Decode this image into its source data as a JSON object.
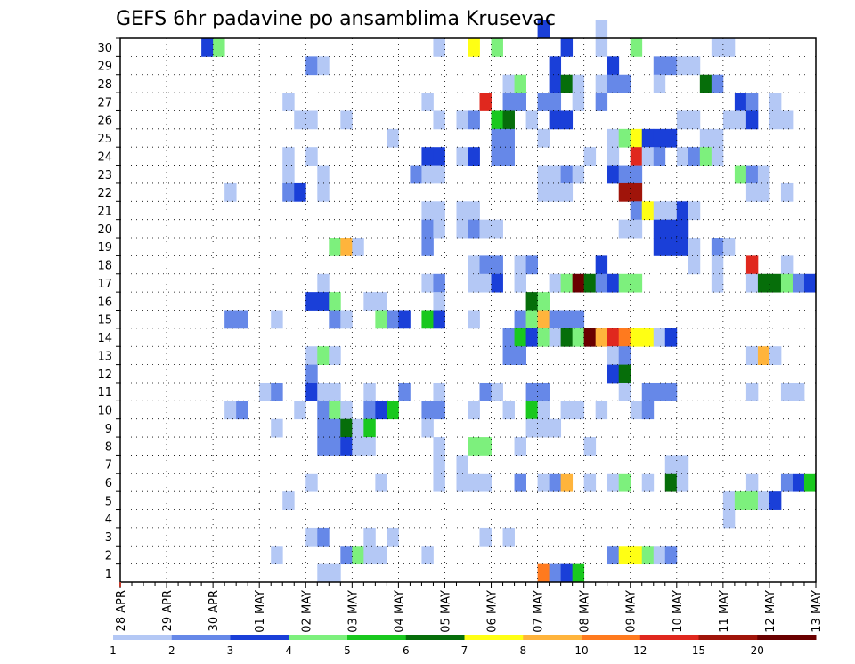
{
  "chart_data": {
    "type": "heatmap",
    "title": "GEFS 6hr padavine po ansamblima Krusevac",
    "xlabel": "",
    "ylabel": "",
    "x_tick_labels": [
      "28 APR",
      "29 APR",
      "30 APR",
      "01 MAY",
      "02 MAY",
      "03 MAY",
      "04 MAY",
      "05 MAY",
      "06 MAY",
      "07 MAY",
      "08 MAY",
      "09 MAY",
      "10 MAY",
      "11 MAY",
      "12 MAY",
      "13 MAY"
    ],
    "y_tick_labels": [
      "1",
      "2",
      "3",
      "4",
      "5",
      "6",
      "7",
      "8",
      "9",
      "10",
      "11",
      "12",
      "13",
      "14",
      "15",
      "16",
      "17",
      "18",
      "19",
      "20",
      "21",
      "22",
      "23",
      "24",
      "25",
      "26",
      "27",
      "28",
      "29",
      "30"
    ],
    "y_range": [
      0,
      30
    ],
    "x_steps_per_day": 4,
    "total_steps": 60,
    "grid": true,
    "colorbar": {
      "labels": [
        "1",
        "2",
        "3",
        "4",
        "5",
        "6",
        "7",
        "8",
        "10",
        "12",
        "15",
        "20"
      ],
      "colors": [
        "#b4c8f5",
        "#6688e8",
        "#1a3fd8",
        "#7df07d",
        "#19c81e",
        "#066e0a",
        "#ffff14",
        "#ffb43c",
        "#ff7a1e",
        "#e0281e",
        "#a0140a",
        "#6a0000"
      ]
    },
    "cells": [
      [
        7,
        29,
        2
      ],
      [
        8,
        29,
        3
      ],
      [
        27,
        29,
        0
      ],
      [
        30,
        29,
        6
      ],
      [
        32,
        29,
        3
      ],
      [
        38,
        29,
        2
      ],
      [
        41,
        29,
        0
      ],
      [
        44,
        29,
        3
      ],
      [
        51,
        29,
        0
      ],
      [
        52,
        29,
        0
      ],
      [
        16,
        28,
        1
      ],
      [
        17,
        28,
        0
      ],
      [
        37,
        28,
        2
      ],
      [
        42,
        28,
        2
      ],
      [
        46,
        28,
        1
      ],
      [
        47,
        28,
        1
      ],
      [
        48,
        28,
        0
      ],
      [
        49,
        28,
        0
      ],
      [
        33,
        27,
        0
      ],
      [
        34,
        27,
        3
      ],
      [
        37,
        27,
        2
      ],
      [
        38,
        27,
        5
      ],
      [
        39,
        27,
        0
      ],
      [
        41,
        27,
        0
      ],
      [
        42,
        27,
        1
      ],
      [
        43,
        27,
        1
      ],
      [
        46,
        27,
        0
      ],
      [
        50,
        27,
        5
      ],
      [
        51,
        27,
        1
      ],
      [
        14,
        26,
        0
      ],
      [
        26,
        26,
        0
      ],
      [
        31,
        26,
        9
      ],
      [
        33,
        26,
        1
      ],
      [
        34,
        26,
        1
      ],
      [
        36,
        26,
        1
      ],
      [
        37,
        26,
        1
      ],
      [
        39,
        26,
        0
      ],
      [
        41,
        26,
        1
      ],
      [
        53,
        26,
        2
      ],
      [
        54,
        26,
        1
      ],
      [
        56,
        26,
        0
      ],
      [
        15,
        25,
        0
      ],
      [
        16,
        25,
        0
      ],
      [
        19,
        25,
        0
      ],
      [
        27,
        25,
        0
      ],
      [
        29,
        25,
        0
      ],
      [
        30,
        25,
        1
      ],
      [
        32,
        25,
        4
      ],
      [
        33,
        25,
        5
      ],
      [
        35,
        25,
        0
      ],
      [
        37,
        25,
        2
      ],
      [
        38,
        25,
        2
      ],
      [
        48,
        25,
        0
      ],
      [
        49,
        25,
        0
      ],
      [
        52,
        25,
        0
      ],
      [
        53,
        25,
        0
      ],
      [
        54,
        25,
        2
      ],
      [
        56,
        25,
        0
      ],
      [
        57,
        25,
        0
      ],
      [
        23,
        24,
        0
      ],
      [
        32,
        24,
        1
      ],
      [
        33,
        24,
        1
      ],
      [
        36,
        24,
        0
      ],
      [
        42,
        24,
        0
      ],
      [
        43,
        24,
        3
      ],
      [
        44,
        24,
        6
      ],
      [
        45,
        24,
        2
      ],
      [
        46,
        24,
        2
      ],
      [
        47,
        24,
        2
      ],
      [
        50,
        24,
        0
      ],
      [
        51,
        24,
        0
      ],
      [
        14,
        23,
        0
      ],
      [
        16,
        23,
        0
      ],
      [
        26,
        23,
        2
      ],
      [
        27,
        23,
        2
      ],
      [
        29,
        23,
        0
      ],
      [
        30,
        23,
        2
      ],
      [
        32,
        23,
        1
      ],
      [
        33,
        23,
        1
      ],
      [
        40,
        23,
        0
      ],
      [
        42,
        23,
        0
      ],
      [
        44,
        23,
        9
      ],
      [
        45,
        23,
        0
      ],
      [
        46,
        23,
        1
      ],
      [
        48,
        23,
        0
      ],
      [
        49,
        23,
        1
      ],
      [
        50,
        23,
        3
      ],
      [
        51,
        23,
        0
      ],
      [
        14,
        22,
        0
      ],
      [
        17,
        22,
        0
      ],
      [
        25,
        22,
        1
      ],
      [
        26,
        22,
        0
      ],
      [
        27,
        22,
        0
      ],
      [
        36,
        22,
        0
      ],
      [
        37,
        22,
        0
      ],
      [
        38,
        22,
        1
      ],
      [
        39,
        22,
        0
      ],
      [
        42,
        22,
        2
      ],
      [
        43,
        22,
        1
      ],
      [
        44,
        22,
        1
      ],
      [
        53,
        22,
        3
      ],
      [
        54,
        22,
        1
      ],
      [
        55,
        22,
        0
      ],
      [
        9,
        21,
        0
      ],
      [
        14,
        21,
        1
      ],
      [
        15,
        21,
        2
      ],
      [
        17,
        21,
        0
      ],
      [
        36,
        21,
        0
      ],
      [
        37,
        21,
        0
      ],
      [
        38,
        21,
        0
      ],
      [
        43,
        21,
        10
      ],
      [
        44,
        21,
        10
      ],
      [
        54,
        21,
        0
      ],
      [
        55,
        21,
        0
      ],
      [
        57,
        21,
        0
      ],
      [
        26,
        20,
        0
      ],
      [
        27,
        20,
        0
      ],
      [
        29,
        20,
        0
      ],
      [
        30,
        20,
        0
      ],
      [
        44,
        20,
        1
      ],
      [
        45,
        20,
        6
      ],
      [
        46,
        20,
        0
      ],
      [
        47,
        20,
        0
      ],
      [
        48,
        20,
        2
      ],
      [
        49,
        20,
        0
      ],
      [
        26,
        19,
        1
      ],
      [
        27,
        19,
        0
      ],
      [
        29,
        19,
        0
      ],
      [
        30,
        19,
        1
      ],
      [
        31,
        19,
        0
      ],
      [
        32,
        19,
        0
      ],
      [
        43,
        19,
        0
      ],
      [
        44,
        19,
        0
      ],
      [
        46,
        19,
        2
      ],
      [
        47,
        19,
        2
      ],
      [
        48,
        19,
        2
      ],
      [
        18,
        18,
        3
      ],
      [
        19,
        18,
        7
      ],
      [
        20,
        18,
        0
      ],
      [
        26,
        18,
        1
      ],
      [
        46,
        18,
        2
      ],
      [
        47,
        18,
        2
      ],
      [
        48,
        18,
        2
      ],
      [
        49,
        18,
        0
      ],
      [
        51,
        18,
        1
      ],
      [
        52,
        18,
        0
      ],
      [
        30,
        17,
        0
      ],
      [
        31,
        17,
        1
      ],
      [
        32,
        17,
        1
      ],
      [
        34,
        17,
        0
      ],
      [
        35,
        17,
        1
      ],
      [
        41,
        17,
        2
      ],
      [
        49,
        17,
        0
      ],
      [
        51,
        17,
        0
      ],
      [
        54,
        17,
        9
      ],
      [
        57,
        17,
        0
      ],
      [
        17,
        16,
        0
      ],
      [
        26,
        16,
        0
      ],
      [
        27,
        16,
        1
      ],
      [
        30,
        16,
        0
      ],
      [
        31,
        16,
        0
      ],
      [
        32,
        16,
        2
      ],
      [
        34,
        16,
        0
      ],
      [
        37,
        16,
        0
      ],
      [
        38,
        16,
        3
      ],
      [
        39,
        16,
        11
      ],
      [
        40,
        16,
        5
      ],
      [
        41,
        16,
        1
      ],
      [
        42,
        16,
        2
      ],
      [
        43,
        16,
        3
      ],
      [
        44,
        16,
        3
      ],
      [
        51,
        16,
        0
      ],
      [
        54,
        16,
        0
      ],
      [
        55,
        16,
        5
      ],
      [
        56,
        16,
        5
      ],
      [
        57,
        16,
        3
      ],
      [
        58,
        16,
        1
      ],
      [
        59,
        16,
        2
      ],
      [
        16,
        15,
        2
      ],
      [
        17,
        15,
        2
      ],
      [
        18,
        15,
        3
      ],
      [
        21,
        15,
        0
      ],
      [
        22,
        15,
        0
      ],
      [
        27,
        15,
        0
      ],
      [
        35,
        15,
        5
      ],
      [
        36,
        15,
        3
      ],
      [
        9,
        14,
        1
      ],
      [
        10,
        14,
        1
      ],
      [
        13,
        14,
        0
      ],
      [
        18,
        14,
        1
      ],
      [
        19,
        14,
        0
      ],
      [
        22,
        14,
        3
      ],
      [
        23,
        14,
        1
      ],
      [
        24,
        14,
        2
      ],
      [
        26,
        14,
        4
      ],
      [
        27,
        14,
        2
      ],
      [
        30,
        14,
        0
      ],
      [
        34,
        14,
        1
      ],
      [
        35,
        14,
        3
      ],
      [
        36,
        14,
        7
      ],
      [
        37,
        14,
        1
      ],
      [
        38,
        14,
        1
      ],
      [
        39,
        14,
        1
      ],
      [
        33,
        13,
        1
      ],
      [
        34,
        13,
        4
      ],
      [
        35,
        13,
        2
      ],
      [
        36,
        13,
        3
      ],
      [
        37,
        13,
        0
      ],
      [
        38,
        13,
        5
      ],
      [
        39,
        13,
        3
      ],
      [
        40,
        13,
        11
      ],
      [
        41,
        13,
        7
      ],
      [
        42,
        13,
        9
      ],
      [
        43,
        13,
        8
      ],
      [
        44,
        13,
        6
      ],
      [
        45,
        13,
        6
      ],
      [
        46,
        13,
        0
      ],
      [
        47,
        13,
        2
      ],
      [
        16,
        12,
        0
      ],
      [
        17,
        12,
        3
      ],
      [
        18,
        12,
        0
      ],
      [
        33,
        12,
        1
      ],
      [
        34,
        12,
        1
      ],
      [
        42,
        12,
        0
      ],
      [
        43,
        12,
        1
      ],
      [
        54,
        12,
        0
      ],
      [
        55,
        12,
        7
      ],
      [
        56,
        12,
        0
      ],
      [
        16,
        11,
        1
      ],
      [
        42,
        11,
        2
      ],
      [
        43,
        11,
        5
      ],
      [
        12,
        10,
        0
      ],
      [
        13,
        10,
        1
      ],
      [
        16,
        10,
        2
      ],
      [
        17,
        10,
        0
      ],
      [
        18,
        10,
        0
      ],
      [
        21,
        10,
        0
      ],
      [
        24,
        10,
        1
      ],
      [
        27,
        10,
        0
      ],
      [
        31,
        10,
        1
      ],
      [
        32,
        10,
        0
      ],
      [
        35,
        10,
        1
      ],
      [
        36,
        10,
        1
      ],
      [
        43,
        10,
        0
      ],
      [
        45,
        10,
        1
      ],
      [
        46,
        10,
        1
      ],
      [
        47,
        10,
        1
      ],
      [
        54,
        10,
        0
      ],
      [
        57,
        10,
        0
      ],
      [
        58,
        10,
        0
      ],
      [
        9,
        9,
        0
      ],
      [
        10,
        9,
        1
      ],
      [
        15,
        9,
        0
      ],
      [
        17,
        9,
        1
      ],
      [
        18,
        9,
        3
      ],
      [
        19,
        9,
        0
      ],
      [
        21,
        9,
        1
      ],
      [
        22,
        9,
        2
      ],
      [
        23,
        9,
        4
      ],
      [
        26,
        9,
        1
      ],
      [
        27,
        9,
        1
      ],
      [
        30,
        9,
        0
      ],
      [
        33,
        9,
        0
      ],
      [
        35,
        9,
        4
      ],
      [
        36,
        9,
        0
      ],
      [
        38,
        9,
        0
      ],
      [
        39,
        9,
        0
      ],
      [
        41,
        9,
        0
      ],
      [
        44,
        9,
        0
      ],
      [
        45,
        9,
        1
      ],
      [
        13,
        8,
        0
      ],
      [
        17,
        8,
        1
      ],
      [
        18,
        8,
        1
      ],
      [
        19,
        8,
        5
      ],
      [
        20,
        8,
        0
      ],
      [
        21,
        8,
        4
      ],
      [
        26,
        8,
        0
      ],
      [
        35,
        8,
        0
      ],
      [
        36,
        8,
        0
      ],
      [
        37,
        8,
        0
      ],
      [
        17,
        7,
        1
      ],
      [
        18,
        7,
        1
      ],
      [
        19,
        7,
        2
      ],
      [
        20,
        7,
        0
      ],
      [
        21,
        7,
        0
      ],
      [
        27,
        7,
        0
      ],
      [
        30,
        7,
        3
      ],
      [
        31,
        7,
        3
      ],
      [
        34,
        7,
        0
      ],
      [
        40,
        7,
        0
      ],
      [
        27,
        6,
        0
      ],
      [
        29,
        6,
        0
      ],
      [
        47,
        6,
        0
      ],
      [
        48,
        6,
        0
      ],
      [
        16,
        5,
        0
      ],
      [
        22,
        5,
        0
      ],
      [
        27,
        5,
        0
      ],
      [
        29,
        5,
        0
      ],
      [
        30,
        5,
        0
      ],
      [
        31,
        5,
        0
      ],
      [
        34,
        5,
        1
      ],
      [
        36,
        5,
        0
      ],
      [
        37,
        5,
        1
      ],
      [
        38,
        5,
        7
      ],
      [
        40,
        5,
        0
      ],
      [
        42,
        5,
        0
      ],
      [
        43,
        5,
        3
      ],
      [
        45,
        5,
        0
      ],
      [
        47,
        5,
        5
      ],
      [
        48,
        5,
        0
      ],
      [
        54,
        5,
        0
      ],
      [
        57,
        5,
        1
      ],
      [
        58,
        5,
        2
      ],
      [
        59,
        5,
        4
      ],
      [
        14,
        4,
        0
      ],
      [
        52,
        4,
        0
      ],
      [
        53,
        4,
        3
      ],
      [
        54,
        4,
        3
      ],
      [
        55,
        4,
        0
      ],
      [
        56,
        4,
        2
      ],
      [
        52,
        3,
        0
      ],
      [
        16,
        2,
        0
      ],
      [
        17,
        2,
        1
      ],
      [
        21,
        2,
        0
      ],
      [
        23,
        2,
        0
      ],
      [
        31,
        2,
        0
      ],
      [
        33,
        2,
        0
      ],
      [
        13,
        1,
        0
      ],
      [
        19,
        1,
        1
      ],
      [
        20,
        1,
        3
      ],
      [
        21,
        1,
        0
      ],
      [
        22,
        1,
        0
      ],
      [
        26,
        1,
        0
      ],
      [
        42,
        1,
        1
      ],
      [
        43,
        1,
        6
      ],
      [
        44,
        1,
        6
      ],
      [
        45,
        1,
        3
      ],
      [
        46,
        1,
        0
      ],
      [
        47,
        1,
        1
      ],
      [
        17,
        0,
        0
      ],
      [
        18,
        0,
        0
      ],
      [
        36,
        0,
        8
      ],
      [
        37,
        0,
        1
      ],
      [
        38,
        0,
        2
      ],
      [
        39,
        0,
        4
      ],
      [
        36,
        30,
        2
      ],
      [
        41,
        30,
        0
      ]
    ]
  }
}
